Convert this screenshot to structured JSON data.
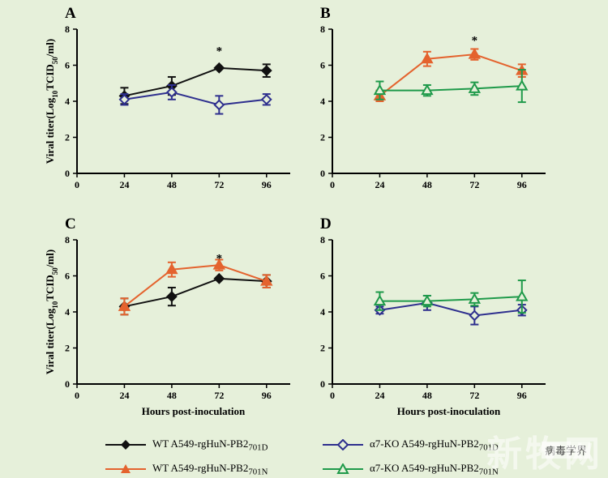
{
  "chart_data": [
    {
      "type": "line",
      "panel": "A",
      "x": [
        24,
        48,
        72,
        96
      ],
      "xticks": [
        0,
        24,
        48,
        72,
        96
      ],
      "yticks": [
        0,
        2,
        4,
        6,
        8
      ],
      "xlim": [
        0,
        108
      ],
      "ylim": [
        0,
        8
      ],
      "ylabel": "Viral titer(Log10TCID50/ml)",
      "xlabel": "",
      "annotations": [
        {
          "x": 72,
          "y": 6.8,
          "text": "*"
        }
      ],
      "series": [
        {
          "key": "wt_d",
          "values": [
            4.3,
            4.85,
            5.85,
            5.7
          ],
          "errors": [
            0.45,
            0.5,
            0.0,
            0.35
          ]
        },
        {
          "key": "ko_d",
          "values": [
            4.1,
            4.5,
            3.8,
            4.1
          ],
          "errors": [
            0.3,
            0.4,
            0.5,
            0.3
          ]
        }
      ]
    },
    {
      "type": "line",
      "panel": "B",
      "x": [
        24,
        48,
        72,
        96
      ],
      "xticks": [
        0,
        24,
        48,
        72,
        96
      ],
      "yticks": [
        0,
        2,
        4,
        6,
        8
      ],
      "xlim": [
        0,
        108
      ],
      "ylim": [
        0,
        8
      ],
      "ylabel": "",
      "xlabel": "",
      "annotations": [
        {
          "x": 72,
          "y": 7.4,
          "text": "*"
        }
      ],
      "series": [
        {
          "key": "wt_n",
          "values": [
            4.3,
            6.35,
            6.6,
            5.7
          ],
          "errors": [
            0.3,
            0.4,
            0.3,
            0.35
          ]
        },
        {
          "key": "ko_n",
          "values": [
            4.6,
            4.6,
            4.7,
            4.85
          ],
          "errors": [
            0.5,
            0.3,
            0.35,
            0.9
          ]
        }
      ]
    },
    {
      "type": "line",
      "panel": "C",
      "x": [
        24,
        48,
        72,
        96
      ],
      "xticks": [
        0,
        24,
        48,
        72,
        96
      ],
      "yticks": [
        0,
        2,
        4,
        6,
        8
      ],
      "xlim": [
        0,
        108
      ],
      "ylim": [
        0,
        8
      ],
      "ylabel": "Viral titer(Log10TCID50/ml)",
      "xlabel": "Hours post-inoculation",
      "annotations": [
        {
          "x": 72,
          "y": 7.0,
          "text": "*"
        }
      ],
      "series": [
        {
          "key": "wt_d",
          "values": [
            4.3,
            4.85,
            5.85,
            5.7
          ],
          "errors": [
            0.45,
            0.5,
            0.0,
            0.35
          ]
        },
        {
          "key": "wt_n",
          "values": [
            4.3,
            6.35,
            6.6,
            5.7
          ],
          "errors": [
            0.45,
            0.4,
            0.3,
            0.35
          ]
        }
      ]
    },
    {
      "type": "line",
      "panel": "D",
      "x": [
        24,
        48,
        72,
        96
      ],
      "xticks": [
        0,
        24,
        48,
        72,
        96
      ],
      "yticks": [
        0,
        2,
        4,
        6,
        8
      ],
      "xlim": [
        0,
        108
      ],
      "ylim": [
        0,
        8
      ],
      "ylabel": "",
      "xlabel": "Hours post-inoculation",
      "annotations": [],
      "series": [
        {
          "key": "ko_d",
          "values": [
            4.1,
            4.5,
            3.8,
            4.1
          ],
          "errors": [
            0.2,
            0.4,
            0.5,
            0.3
          ]
        },
        {
          "key": "ko_n",
          "values": [
            4.6,
            4.6,
            4.7,
            4.85
          ],
          "errors": [
            0.5,
            0.3,
            0.35,
            0.9
          ]
        }
      ]
    }
  ],
  "series_styles": {
    "wt_d": {
      "color": "#111111",
      "marker": "diamond-filled"
    },
    "ko_d": {
      "color": "#2e2f8e",
      "marker": "diamond-open"
    },
    "wt_n": {
      "color": "#e4632e",
      "marker": "triangle-filled"
    },
    "ko_n": {
      "color": "#1f9a4a",
      "marker": "triangle-open"
    }
  },
  "legend": [
    {
      "key": "wt_d",
      "prefix": "WT A549-rgHuN-PB2",
      "sub": "701D"
    },
    {
      "key": "ko_d",
      "prefix": "α7-KO A549-rgHuN-PB2",
      "sub": "701D"
    },
    {
      "key": "wt_n",
      "prefix": "WT A549-rgHuN-PB2",
      "sub": "701N"
    },
    {
      "key": "ko_n",
      "prefix": "α7-KO A549-rgHuN-PB2",
      "sub": "701N"
    }
  ],
  "watermark": {
    "main": "新牧网",
    "sub": "病毒学界"
  }
}
